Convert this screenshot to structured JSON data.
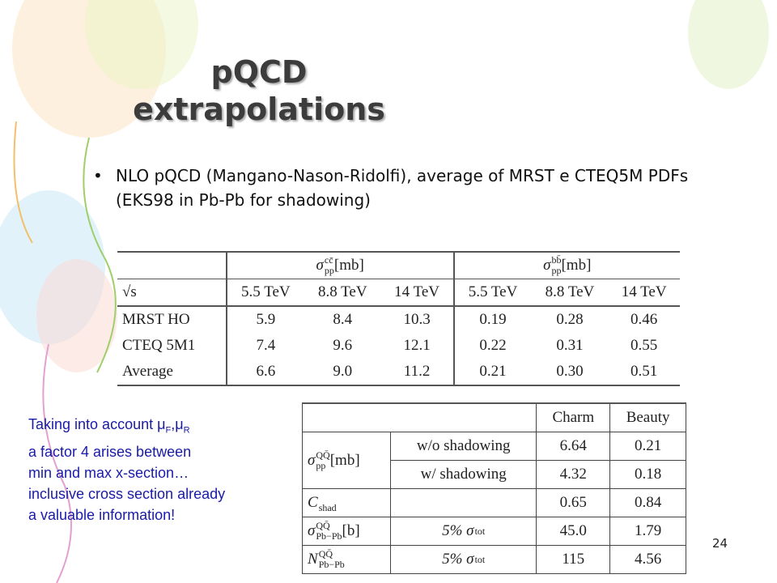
{
  "title_lines": [
    "pQCD",
    "extrapolations"
  ],
  "bullet": "NLO pQCD (Mangano-Nason-Ridolfi), average of MRST e CTEQ5M PDFs (EKS98 in Pb-Pb for shadowing)",
  "table1": {
    "groups": [
      {
        "base": "σ",
        "sub": "pp",
        "sup": "cc̄",
        "unit": "[mb]"
      },
      {
        "base": "σ",
        "sub": "pp",
        "sup": "bb̄",
        "unit": "[mb]"
      }
    ],
    "sqrt_s": "√s",
    "energies": [
      "5.5 TeV",
      "8.8 TeV",
      "14 TeV",
      "5.5 TeV",
      "8.8 TeV",
      "14 TeV"
    ],
    "rows": [
      {
        "label": "MRST HO",
        "values": [
          "5.9",
          "8.4",
          "10.3",
          "0.19",
          "0.28",
          "0.46"
        ]
      },
      {
        "label": "CTEQ 5M1",
        "values": [
          "7.4",
          "9.6",
          "12.1",
          "0.22",
          "0.31",
          "0.55"
        ]
      },
      {
        "label": "Average",
        "values": [
          "6.6",
          "9.0",
          "11.2",
          "0.21",
          "0.30",
          "0.51"
        ]
      }
    ]
  },
  "table2": {
    "header": [
      "Charm",
      "Beauty"
    ],
    "rows": [
      {
        "label": {
          "base": "σ",
          "sub": "pp",
          "sup": "QQ̄",
          "unit": " [mb]"
        },
        "cases": [
          {
            "condition": "w/o shadowing",
            "values": [
              "6.64",
              "0.21"
            ]
          },
          {
            "condition": "w/ shadowing",
            "values": [
              "4.32",
              "0.18"
            ]
          }
        ]
      },
      {
        "label": {
          "base": "C",
          "sub": "shad"
        },
        "cases": [
          {
            "values": [
              "0.65",
              "0.84"
            ]
          }
        ]
      },
      {
        "label": {
          "base": "σ",
          "sub": "Pb−Pb",
          "sup": "QQ̄",
          "unit": "[b]"
        },
        "cases": [
          {
            "condition": {
              "base": "5% σ",
              "sup": "tot"
            },
            "values": [
              "45.0",
              "1.79"
            ]
          }
        ]
      },
      {
        "label": {
          "base": "N",
          "sub": "Pb−Pb",
          "sup": "QQ̄"
        },
        "cases": [
          {
            "condition": {
              "base": "5% σ",
              "sup": "tot"
            },
            "values": [
              "115",
              "4.56"
            ]
          }
        ]
      }
    ]
  },
  "note": {
    "first_line": [
      {
        "text": "Taking into account  μ"
      },
      {
        "sub": "F"
      },
      {
        "text": ",μ"
      },
      {
        "sub": "R"
      }
    ],
    "lines": [
      "a factor 4 arises between",
      "min and max x-section…",
      "inclusive cross section already",
      "a valuable information!"
    ]
  },
  "page_number": "24"
}
